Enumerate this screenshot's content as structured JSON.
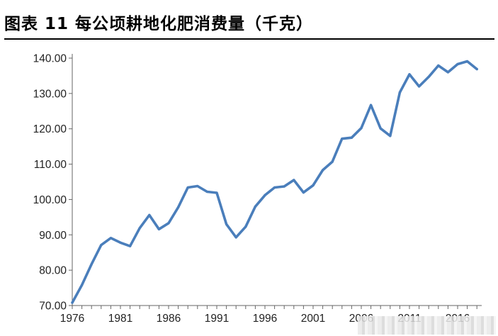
{
  "title": "图表 11 每公顷耕地化肥消费量（千克）",
  "chart_data": {
    "type": "line",
    "title": "图表 11 每公顷耕地化肥消费量（千克）",
    "xlabel": "",
    "ylabel": "",
    "ylim": [
      70,
      140
    ],
    "yticks": [
      "70.00",
      "80.00",
      "90.00",
      "100.00",
      "110.00",
      "120.00",
      "130.00",
      "140.00"
    ],
    "xticks": [
      "1976",
      "1981",
      "1986",
      "1991",
      "1996",
      "2001",
      "2006",
      "2011",
      "2016"
    ],
    "grid": false,
    "color": "#4a7ebb",
    "x": [
      1976,
      1977,
      1978,
      1979,
      1980,
      1981,
      1982,
      1983,
      1984,
      1985,
      1986,
      1987,
      1988,
      1989,
      1990,
      1991,
      1992,
      1993,
      1994,
      1995,
      1996,
      1997,
      1998,
      1999,
      2000,
      2001,
      2002,
      2003,
      2004,
      2005,
      2006,
      2007,
      2008,
      2009,
      2010,
      2011,
      2012,
      2013,
      2014,
      2015,
      2016,
      2017,
      2018
    ],
    "values": [
      70.8,
      75.8,
      81.7,
      87.1,
      89.1,
      87.8,
      86.8,
      91.9,
      95.6,
      91.6,
      93.3,
      97.8,
      103.4,
      103.8,
      102.2,
      101.9,
      93.0,
      89.3,
      92.3,
      98.0,
      101.2,
      103.4,
      103.7,
      105.5,
      102.0,
      104.0,
      108.3,
      110.7,
      117.2,
      117.5,
      120.2,
      126.7,
      120.1,
      118.0,
      130.3,
      135.4,
      132.0,
      134.7,
      137.9,
      136.0,
      138.3,
      139.1,
      136.9
    ]
  }
}
